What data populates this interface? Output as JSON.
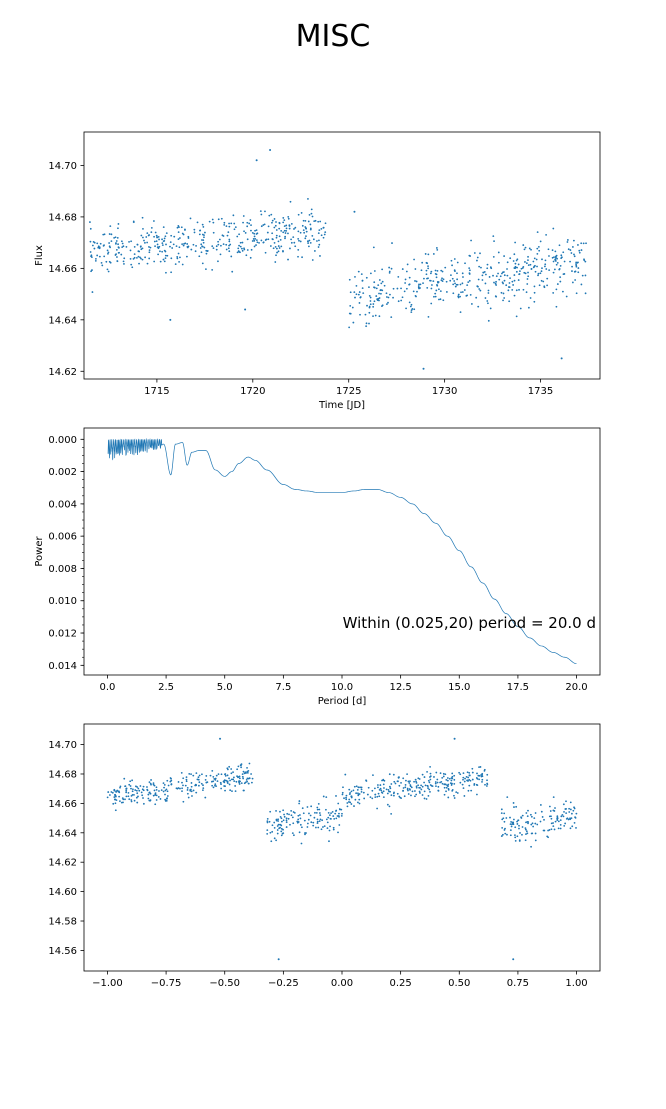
{
  "figure": {
    "title": "MISC"
  },
  "colors": {
    "series": "#1f77b4",
    "axes": "#000000"
  },
  "chart_data": [
    {
      "type": "scatter",
      "xlabel": "Time [JD]",
      "ylabel": "Flux",
      "xlim": [
        1711.2,
        1738.1
      ],
      "ylim": [
        14.713,
        14.617
      ],
      "inverted_y": true,
      "xticks": [
        1715,
        1720,
        1725,
        1730,
        1735
      ],
      "xtick_labels": [
        "1715",
        "1720",
        "1725",
        "1730",
        "1735"
      ],
      "yticks": [
        14.62,
        14.64,
        14.66,
        14.68,
        14.7
      ],
      "ytick_labels": [
        "14.62",
        "14.64",
        "14.66",
        "14.68",
        "14.70"
      ],
      "segments": [
        {
          "x_range": [
            1711.5,
            1723.8
          ],
          "y_start": 14.666,
          "y_end": 14.675,
          "y_spread": 0.008
        },
        {
          "x_range": [
            1725.0,
            1737.4
          ],
          "y_start": 14.648,
          "y_end": 14.663,
          "y_spread": 0.011
        }
      ],
      "outliers": [
        {
          "x": 1715.7,
          "y": 14.64
        },
        {
          "x": 1719.6,
          "y": 14.644
        },
        {
          "x": 1728.9,
          "y": 14.621
        },
        {
          "x": 1736.1,
          "y": 14.625
        },
        {
          "x": 1720.9,
          "y": 14.706
        },
        {
          "x": 1720.2,
          "y": 14.702
        },
        {
          "x": 1725.3,
          "y": 14.682
        }
      ],
      "grid": false,
      "legend": "none"
    },
    {
      "type": "line",
      "xlabel": "Period [d]",
      "ylabel": "Power",
      "xlim": [
        -1.0,
        21.0
      ],
      "ylim": [
        -0.0007,
        0.0146
      ],
      "xticks": [
        0.0,
        2.5,
        5.0,
        7.5,
        10.0,
        12.5,
        15.0,
        17.5,
        20.0
      ],
      "xtick_labels": [
        "0.0",
        "2.5",
        "5.0",
        "7.5",
        "10.0",
        "12.5",
        "15.0",
        "17.5",
        "20.0"
      ],
      "yticks": [
        0.0,
        0.002,
        0.004,
        0.006,
        0.008,
        0.01,
        0.012,
        0.014
      ],
      "ytick_labels": [
        "0.000",
        "0.002",
        "0.004",
        "0.006",
        "0.008",
        "0.010",
        "0.012",
        "0.014"
      ],
      "annotation": "Within (0.025,20) period = 20.0 d",
      "x": [
        0.025,
        0.5,
        1.0,
        1.5,
        2.0,
        2.4,
        2.7,
        2.9,
        3.2,
        3.4,
        3.6,
        3.9,
        4.2,
        4.6,
        5.0,
        5.3,
        5.6,
        6.0,
        6.3,
        6.8,
        7.5,
        8.0,
        8.5,
        9.0,
        9.5,
        10.0,
        10.5,
        11.0,
        11.5,
        12.0,
        12.5,
        13.0,
        13.5,
        14.0,
        14.5,
        15.0,
        15.5,
        16.0,
        16.5,
        17.0,
        17.5,
        18.0,
        18.5,
        19.0,
        19.5,
        20.0
      ],
      "y": [
        0.001,
        0.0008,
        0.0007,
        0.0007,
        0.0005,
        0.0003,
        0.0022,
        0.0003,
        0.0002,
        0.0016,
        0.0008,
        0.0007,
        0.0007,
        0.0019,
        0.0023,
        0.002,
        0.0015,
        0.0011,
        0.0013,
        0.0019,
        0.0028,
        0.0031,
        0.0032,
        0.0033,
        0.0033,
        0.0033,
        0.0032,
        0.0031,
        0.0031,
        0.0033,
        0.0036,
        0.004,
        0.0046,
        0.0052,
        0.006,
        0.0069,
        0.0079,
        0.0089,
        0.0099,
        0.0108,
        0.0116,
        0.0123,
        0.0128,
        0.0132,
        0.0135,
        0.0139
      ],
      "grid": false,
      "legend": "none"
    },
    {
      "type": "scatter",
      "xlabel": "",
      "ylabel": "",
      "xlim": [
        -1.1,
        1.1
      ],
      "ylim": [
        14.714,
        14.546
      ],
      "inverted_y": true,
      "xticks": [
        -1.0,
        -0.75,
        -0.5,
        -0.25,
        0.0,
        0.25,
        0.5,
        0.75,
        1.0
      ],
      "xtick_labels": [
        "−1.00",
        "−0.75",
        "−0.50",
        "−0.25",
        "0.00",
        "0.25",
        "0.50",
        "0.75",
        "1.00"
      ],
      "yticks": [
        14.56,
        14.58,
        14.6,
        14.62,
        14.64,
        14.66,
        14.68,
        14.7
      ],
      "ytick_labels": [
        "14.56",
        "14.58",
        "14.60",
        "14.62",
        "14.64",
        "14.66",
        "14.68",
        "14.70"
      ],
      "segments": [
        {
          "x_range": [
            -1.0,
            -0.38
          ],
          "y_start": 14.665,
          "y_end": 14.678,
          "y_spread": 0.008
        },
        {
          "x_range": [
            -0.32,
            0.0
          ],
          "y_start": 14.645,
          "y_end": 14.652,
          "y_spread": 0.01
        },
        {
          "x_range": [
            0.0,
            0.62
          ],
          "y_start": 14.665,
          "y_end": 14.678,
          "y_spread": 0.008
        },
        {
          "x_range": [
            0.68,
            1.0
          ],
          "y_start": 14.645,
          "y_end": 14.652,
          "y_spread": 0.01
        }
      ],
      "outliers": [
        {
          "x": -0.27,
          "y": 14.554
        },
        {
          "x": 0.73,
          "y": 14.554
        },
        {
          "x": -0.52,
          "y": 14.704
        },
        {
          "x": 0.48,
          "y": 14.704
        }
      ],
      "grid": false,
      "legend": "none"
    }
  ]
}
